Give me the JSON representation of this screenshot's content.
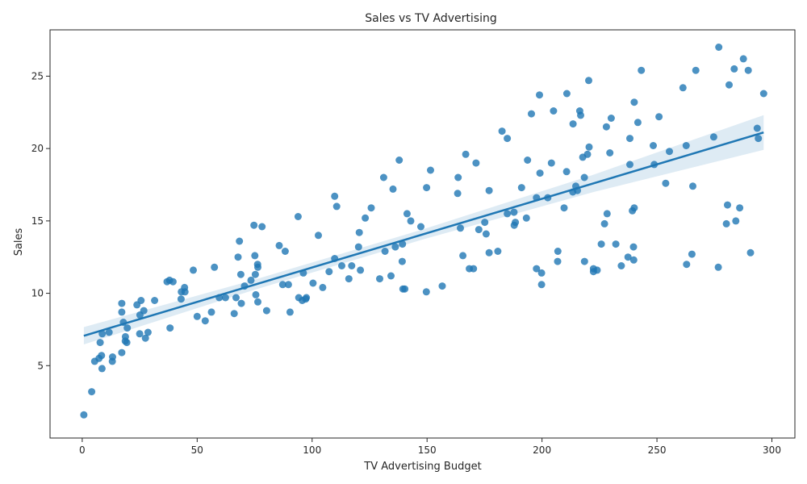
{
  "chart_data": {
    "type": "scatter",
    "title": "Sales vs TV Advertising",
    "xlabel": "TV Advertising Budget",
    "ylabel": "Sales",
    "xlim": [
      -14,
      310
    ],
    "ylim": [
      0,
      28.2
    ],
    "xticks": [
      0,
      50,
      100,
      150,
      200,
      250,
      300
    ],
    "yticks": [
      5,
      10,
      15,
      20,
      25
    ],
    "grid": false,
    "legend": "none",
    "point_color": "#1f77b4",
    "point_opacity": 0.8,
    "regression": {
      "intercept": 7.03,
      "slope": 0.0475,
      "x_range": [
        0.7,
        296.4
      ],
      "color": "#1f77b4",
      "ci_half_width": [
        0.6,
        0.35,
        0.35,
        0.6,
        1.2
      ]
    },
    "points": [
      [
        0.7,
        1.6
      ],
      [
        4.1,
        3.2
      ],
      [
        5.4,
        5.3
      ],
      [
        7.3,
        5.5
      ],
      [
        7.8,
        6.6
      ],
      [
        8.4,
        5.7
      ],
      [
        8.6,
        4.8
      ],
      [
        8.7,
        7.2
      ],
      [
        11.7,
        7.3
      ],
      [
        13.1,
        5.3
      ],
      [
        13.2,
        5.6
      ],
      [
        17.2,
        5.9
      ],
      [
        17.2,
        8.7
      ],
      [
        17.2,
        9.3
      ],
      [
        17.9,
        8.0
      ],
      [
        18.7,
        6.7
      ],
      [
        18.8,
        7.0
      ],
      [
        19.4,
        6.6
      ],
      [
        19.6,
        7.6
      ],
      [
        23.8,
        9.2
      ],
      [
        25.0,
        7.2
      ],
      [
        25.1,
        8.5
      ],
      [
        25.6,
        9.5
      ],
      [
        26.8,
        8.8
      ],
      [
        27.5,
        6.9
      ],
      [
        28.6,
        7.3
      ],
      [
        31.5,
        9.5
      ],
      [
        36.9,
        10.8
      ],
      [
        38.0,
        10.9
      ],
      [
        38.2,
        7.6
      ],
      [
        39.5,
        10.8
      ],
      [
        43.0,
        9.6
      ],
      [
        43.1,
        10.1
      ],
      [
        44.5,
        10.4
      ],
      [
        44.7,
        10.1
      ],
      [
        48.3,
        11.6
      ],
      [
        50.0,
        8.4
      ],
      [
        53.5,
        8.1
      ],
      [
        56.2,
        8.7
      ],
      [
        57.5,
        11.8
      ],
      [
        59.6,
        9.7
      ],
      [
        62.3,
        9.7
      ],
      [
        66.1,
        8.6
      ],
      [
        66.9,
        9.7
      ],
      [
        67.8,
        12.5
      ],
      [
        68.4,
        13.6
      ],
      [
        69.0,
        11.3
      ],
      [
        69.2,
        9.3
      ],
      [
        70.6,
        10.5
      ],
      [
        73.4,
        10.9
      ],
      [
        74.7,
        14.7
      ],
      [
        75.1,
        12.6
      ],
      [
        75.3,
        11.3
      ],
      [
        75.5,
        9.9
      ],
      [
        76.3,
        12.0
      ],
      [
        76.4,
        11.8
      ],
      [
        76.4,
        9.4
      ],
      [
        78.2,
        14.6
      ],
      [
        80.2,
        8.8
      ],
      [
        85.7,
        13.3
      ],
      [
        87.2,
        10.6
      ],
      [
        88.3,
        12.9
      ],
      [
        89.7,
        10.6
      ],
      [
        90.4,
        8.7
      ],
      [
        93.9,
        15.3
      ],
      [
        94.2,
        9.7
      ],
      [
        95.7,
        9.5
      ],
      [
        96.2,
        11.4
      ],
      [
        97.2,
        9.6
      ],
      [
        97.5,
        9.7
      ],
      [
        100.4,
        10.7
      ],
      [
        102.7,
        14.0
      ],
      [
        104.6,
        10.4
      ],
      [
        107.4,
        11.5
      ],
      [
        109.8,
        12.4
      ],
      [
        109.8,
        16.7
      ],
      [
        110.7,
        16.0
      ],
      [
        112.9,
        11.9
      ],
      [
        116.0,
        11.0
      ],
      [
        117.2,
        11.9
      ],
      [
        120.2,
        13.2
      ],
      [
        120.5,
        14.2
      ],
      [
        121.0,
        11.6
      ],
      [
        123.1,
        15.2
      ],
      [
        125.7,
        15.9
      ],
      [
        129.4,
        11.0
      ],
      [
        131.1,
        18.0
      ],
      [
        131.7,
        12.9
      ],
      [
        134.3,
        11.2
      ],
      [
        135.2,
        17.2
      ],
      [
        136.2,
        13.2
      ],
      [
        137.9,
        19.2
      ],
      [
        139.2,
        12.2
      ],
      [
        139.3,
        13.4
      ],
      [
        139.5,
        10.3
      ],
      [
        140.3,
        10.3
      ],
      [
        141.3,
        15.5
      ],
      [
        142.9,
        15.0
      ],
      [
        147.3,
        14.6
      ],
      [
        149.7,
        10.1
      ],
      [
        149.8,
        17.3
      ],
      [
        151.5,
        18.5
      ],
      [
        156.6,
        10.5
      ],
      [
        163.3,
        16.9
      ],
      [
        163.5,
        18.0
      ],
      [
        164.5,
        14.5
      ],
      [
        165.6,
        12.6
      ],
      [
        166.8,
        19.6
      ],
      [
        168.4,
        11.7
      ],
      [
        170.2,
        11.7
      ],
      [
        171.3,
        19.0
      ],
      [
        172.5,
        14.4
      ],
      [
        175.1,
        14.9
      ],
      [
        175.7,
        14.1
      ],
      [
        177.0,
        12.8
      ],
      [
        177.0,
        17.1
      ],
      [
        180.8,
        12.9
      ],
      [
        182.6,
        21.2
      ],
      [
        184.9,
        20.7
      ],
      [
        184.9,
        15.5
      ],
      [
        187.8,
        15.6
      ],
      [
        187.9,
        14.7
      ],
      [
        188.4,
        14.9
      ],
      [
        191.1,
        17.3
      ],
      [
        193.2,
        15.2
      ],
      [
        193.7,
        19.2
      ],
      [
        195.4,
        22.4
      ],
      [
        197.6,
        11.7
      ],
      [
        197.6,
        16.6
      ],
      [
        198.9,
        23.7
      ],
      [
        199.1,
        18.3
      ],
      [
        199.8,
        10.6
      ],
      [
        199.8,
        11.4
      ],
      [
        202.5,
        16.6
      ],
      [
        204.1,
        19.0
      ],
      [
        205.0,
        22.6
      ],
      [
        206.8,
        12.2
      ],
      [
        206.9,
        12.9
      ],
      [
        209.6,
        15.9
      ],
      [
        210.7,
        18.4
      ],
      [
        210.8,
        23.8
      ],
      [
        213.4,
        17.0
      ],
      [
        213.5,
        21.7
      ],
      [
        214.7,
        17.4
      ],
      [
        215.4,
        17.1
      ],
      [
        216.4,
        22.6
      ],
      [
        216.8,
        22.3
      ],
      [
        217.7,
        19.4
      ],
      [
        218.4,
        18.0
      ],
      [
        218.5,
        12.2
      ],
      [
        219.8,
        19.6
      ],
      [
        220.3,
        24.7
      ],
      [
        220.5,
        20.1
      ],
      [
        222.4,
        11.7
      ],
      [
        222.4,
        11.5
      ],
      [
        224.0,
        11.6
      ],
      [
        225.8,
        13.4
      ],
      [
        227.2,
        14.8
      ],
      [
        228.0,
        21.5
      ],
      [
        228.3,
        15.5
      ],
      [
        229.5,
        19.7
      ],
      [
        230.1,
        22.1
      ],
      [
        232.1,
        13.4
      ],
      [
        234.5,
        11.9
      ],
      [
        237.4,
        12.5
      ],
      [
        238.2,
        20.7
      ],
      [
        239.3,
        15.7
      ],
      [
        239.8,
        13.2
      ],
      [
        239.9,
        12.3
      ],
      [
        240.1,
        23.2
      ],
      [
        240.1,
        15.9
      ],
      [
        241.7,
        21.8
      ],
      [
        243.2,
        25.4
      ],
      [
        248.4,
        20.2
      ],
      [
        248.8,
        18.9
      ],
      [
        250.9,
        22.2
      ],
      [
        253.8,
        17.6
      ],
      [
        255.4,
        19.8
      ],
      [
        261.3,
        24.2
      ],
      [
        262.7,
        20.2
      ],
      [
        262.9,
        12.0
      ],
      [
        265.2,
        12.7
      ],
      [
        265.6,
        17.4
      ],
      [
        266.9,
        25.4
      ],
      [
        274.7,
        20.8
      ],
      [
        276.7,
        11.8
      ],
      [
        276.9,
        27.0
      ],
      [
        280.2,
        14.8
      ],
      [
        280.7,
        16.1
      ],
      [
        281.4,
        24.4
      ],
      [
        283.6,
        25.5
      ],
      [
        284.3,
        15.0
      ],
      [
        286.0,
        15.9
      ],
      [
        287.6,
        26.2
      ],
      [
        289.7,
        25.4
      ],
      [
        290.7,
        12.8
      ],
      [
        293.6,
        21.4
      ],
      [
        294.1,
        20.7
      ],
      [
        296.4,
        23.8
      ],
      [
        238.2,
        18.9
      ]
    ]
  }
}
